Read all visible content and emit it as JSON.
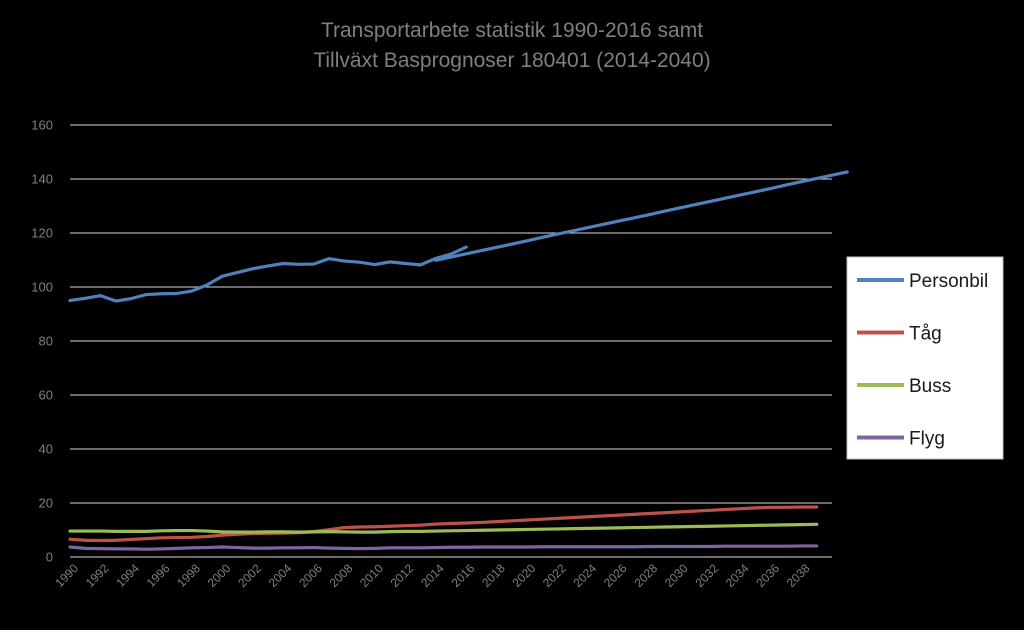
{
  "chart_data": {
    "type": "line",
    "title": [
      "Transportarbete statistik 1990-2016 samt",
      "Tillväxt Basprognoser 180401 (2014-2040)"
    ],
    "xlabel": "",
    "ylabel": "",
    "ylim": [
      0,
      160
    ],
    "yticks": [
      "0",
      "20",
      "40",
      "60",
      "80",
      "100",
      "120",
      "140",
      "160"
    ],
    "xtick_labels": [
      "1990",
      "1992",
      "1994",
      "1996",
      "1998",
      "2000",
      "2002",
      "2004",
      "2006",
      "2008",
      "2010",
      "2012",
      "2014",
      "2016",
      "2018",
      "2020",
      "2022",
      "2024",
      "2026",
      "2028",
      "2030",
      "2032",
      "2034",
      "2036",
      "2038"
    ],
    "grid": "horizontal",
    "legend_position": "right",
    "series": [
      {
        "name": "Personbil",
        "color": "#4f81bd",
        "segments": [
          {
            "x_start": 1990,
            "values": [
              95,
              95.8,
              96.8,
              94.8,
              95.7,
              97.2,
              97.5,
              97.6,
              98.5,
              100.8,
              104,
              105.4,
              106.8,
              107.8,
              108.7,
              108.4,
              108.5,
              110.5,
              109.6,
              109.2,
              108.3,
              109.3,
              108.7,
              108.2,
              110.6,
              112.2,
              114.8
            ]
          },
          {
            "x_start": 2014,
            "values": [
              109.9,
              111.1,
              112.3,
              113.5,
              114.7,
              115.9,
              117.1,
              118.4,
              119.6,
              120.8,
              122,
              123.2,
              124.4,
              125.6,
              126.8,
              128.1,
              129.3,
              130.5,
              131.7,
              132.9,
              134.1,
              135.3,
              136.5,
              137.8,
              139,
              140.2,
              141.4,
              142.6
            ]
          }
        ]
      },
      {
        "name": "Tåg",
        "color": "#c0504d",
        "segments": [
          {
            "x_start": 1990,
            "values": [
              6.6,
              6.2,
              6.1,
              6.2,
              6.5,
              6.8,
              7.1,
              7.2,
              7.3,
              7.6,
              8.1,
              8.4,
              8.7,
              8.8,
              8.9,
              9,
              9.4,
              10.1,
              10.9,
              11.1,
              11.2,
              11.4,
              11.6,
              11.8,
              12.2,
              12.4,
              12.6,
              12.8,
              13.1,
              13.4,
              13.7,
              14,
              14.3,
              14.6,
              14.9,
              15.2,
              15.5,
              15.8,
              16.1,
              16.4,
              16.7,
              17,
              17.3,
              17.6,
              17.9,
              18.2,
              18.4,
              18.4,
              18.5,
              18.5
            ]
          }
        ]
      },
      {
        "name": "Buss",
        "color": "#9bbb59",
        "segments": [
          {
            "x_start": 1990,
            "values": [
              9.6,
              9.6,
              9.6,
              9.5,
              9.5,
              9.5,
              9.7,
              9.8,
              9.8,
              9.6,
              9.3,
              9.2,
              9.2,
              9.3,
              9.3,
              9.2,
              9.3,
              9.4,
              9.3,
              9.2,
              9.2,
              9.4,
              9.5,
              9.5,
              9.6,
              9.7,
              9.8,
              9.9,
              10,
              10.1,
              10.2,
              10.3,
              10.4,
              10.5,
              10.6,
              10.7,
              10.8,
              10.9,
              11,
              11.1,
              11.2,
              11.3,
              11.4,
              11.5,
              11.6,
              11.7,
              11.8,
              11.9,
              12,
              12.1
            ]
          }
        ]
      },
      {
        "name": "Flyg",
        "color": "#8064a2",
        "segments": [
          {
            "x_start": 1990,
            "values": [
              3.7,
              3.2,
              3.1,
              3,
              3,
              2.9,
              3,
              3.2,
              3.4,
              3.5,
              3.7,
              3.5,
              3.3,
              3.3,
              3.4,
              3.4,
              3.5,
              3.3,
              3.2,
              3.1,
              3.2,
              3.4,
              3.4,
              3.4,
              3.5,
              3.6,
              3.6,
              3.7,
              3.7,
              3.7,
              3.7,
              3.8,
              3.8,
              3.8,
              3.8,
              3.8,
              3.8,
              3.8,
              3.9,
              3.9,
              3.9,
              3.9,
              3.9,
              4,
              4,
              4,
              4,
              4,
              4.1,
              4.1
            ]
          }
        ]
      }
    ]
  }
}
